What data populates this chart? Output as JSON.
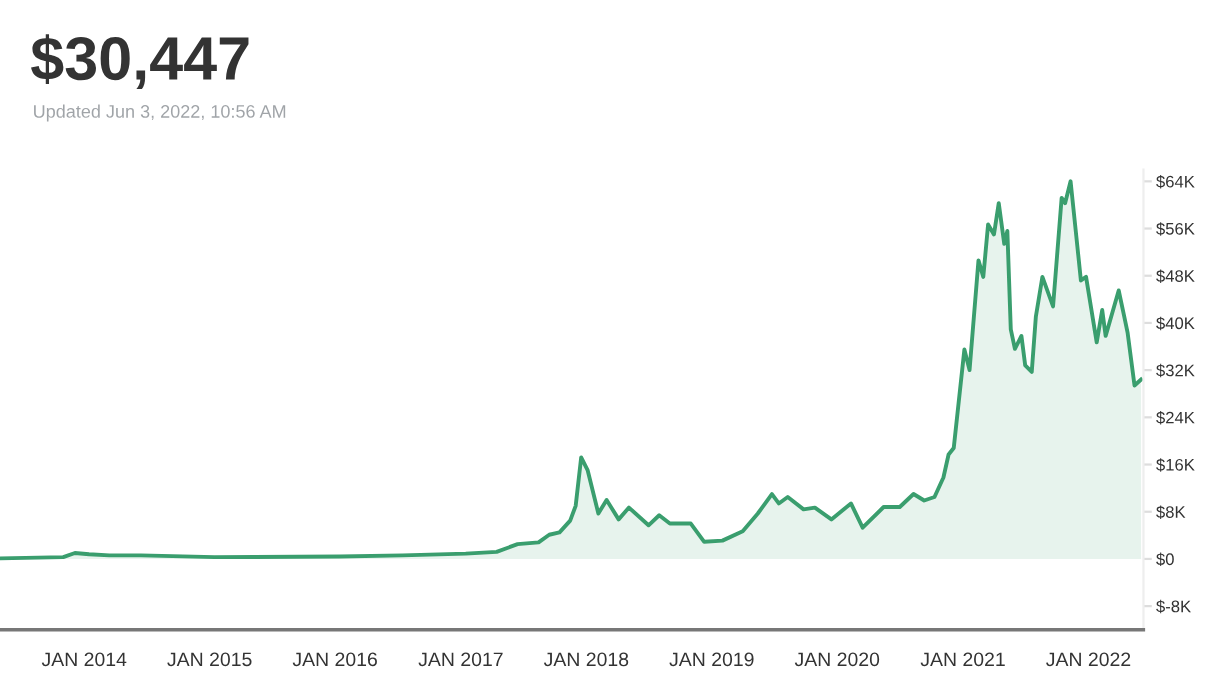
{
  "chart_data": {
    "type": "area",
    "title": "$30,447",
    "subtitle": "Updated Jun 3, 2022, 10:56 AM",
    "x": [
      "2013-05-01",
      "2013-11-01",
      "2013-12-05",
      "2014-01-15",
      "2014-03-15",
      "2014-06-15",
      "2015-01-15",
      "2016-01-15",
      "2016-07-15",
      "2017-01-15",
      "2017-04-15",
      "2017-06-15",
      "2017-08-15",
      "2017-09-15",
      "2017-10-15",
      "2017-11-15",
      "2017-12-01",
      "2017-12-17",
      "2018-01-05",
      "2018-02-05",
      "2018-03-01",
      "2018-04-05",
      "2018-05-05",
      "2018-07-01",
      "2018-08-01",
      "2018-09-01",
      "2018-11-01",
      "2018-12-10",
      "2019-02-01",
      "2019-04-01",
      "2019-05-15",
      "2019-06-25",
      "2019-07-15",
      "2019-08-10",
      "2019-09-25",
      "2019-10-28",
      "2019-12-15",
      "2020-02-10",
      "2020-03-15",
      "2020-05-15",
      "2020-07-01",
      "2020-08-10",
      "2020-09-10",
      "2020-10-10",
      "2020-11-05",
      "2020-11-20",
      "2020-12-05",
      "2021-01-05",
      "2021-01-20",
      "2021-02-15",
      "2021-03-01",
      "2021-03-15",
      "2021-04-01",
      "2021-04-15",
      "2021-05-01",
      "2021-05-10",
      "2021-05-20",
      "2021-06-01",
      "2021-06-20",
      "2021-07-01",
      "2021-07-20",
      "2021-08-01",
      "2021-08-20",
      "2021-09-20",
      "2021-10-15",
      "2021-10-25",
      "2021-11-10",
      "2021-11-25",
      "2021-12-10",
      "2021-12-25",
      "2022-01-25",
      "2022-02-10",
      "2022-02-20",
      "2022-03-30",
      "2022-04-15",
      "2022-04-25",
      "2022-05-15",
      "2022-06-03"
    ],
    "series": [
      {
        "color": "#3a9e6e",
        "values": [
          100,
          300,
          1000,
          800,
          600,
          600,
          300,
          400,
          600,
          900,
          1200,
          2500,
          2800,
          4100,
          4500,
          6500,
          9000,
          17200,
          15000,
          7700,
          10000,
          6700,
          8700,
          5700,
          7400,
          6000,
          6000,
          2900,
          3100,
          4700,
          7700,
          11000,
          9400,
          10500,
          8400,
          8700,
          6700,
          9400,
          5300,
          8800,
          8800,
          11000,
          9900,
          10500,
          13800,
          17700,
          18800,
          35500,
          32000,
          50600,
          47800,
          56700,
          55000,
          60300,
          53400,
          55600,
          38900,
          35600,
          37800,
          32800,
          31700,
          41100,
          47800,
          42800,
          61200,
          60300,
          64000,
          55600,
          47200,
          47800,
          36700,
          42200,
          37800,
          45500,
          41100,
          38300,
          29400,
          30400
        ]
      }
    ],
    "xlim": [
      "2013-05-01",
      "2022-06-10"
    ],
    "xticks": [
      {
        "value": "2014-01-01",
        "label": "JAN 2014"
      },
      {
        "value": "2015-01-01",
        "label": "JAN 2015"
      },
      {
        "value": "2016-01-01",
        "label": "JAN 2016"
      },
      {
        "value": "2017-01-01",
        "label": "JAN 2017"
      },
      {
        "value": "2018-01-01",
        "label": "JAN 2018"
      },
      {
        "value": "2019-01-01",
        "label": "JAN 2019"
      },
      {
        "value": "2020-01-01",
        "label": "JAN 2020"
      },
      {
        "value": "2021-01-01",
        "label": "JAN 2021"
      },
      {
        "value": "2022-01-01",
        "label": "JAN 2022"
      }
    ],
    "ylim": [
      -12000,
      66000
    ],
    "yticks": [
      {
        "value": -8000,
        "label": "$-8K"
      },
      {
        "value": 0,
        "label": "$0"
      },
      {
        "value": 8000,
        "label": "$8K"
      },
      {
        "value": 16000,
        "label": "$16K"
      },
      {
        "value": 24000,
        "label": "$24K"
      },
      {
        "value": 32000,
        "label": "$32K"
      },
      {
        "value": 40000,
        "label": "$40K"
      },
      {
        "value": 48000,
        "label": "$48K"
      },
      {
        "value": 56000,
        "label": "$56K"
      },
      {
        "value": 64000,
        "label": "$64K"
      }
    ],
    "grid": false,
    "legend": false
  }
}
